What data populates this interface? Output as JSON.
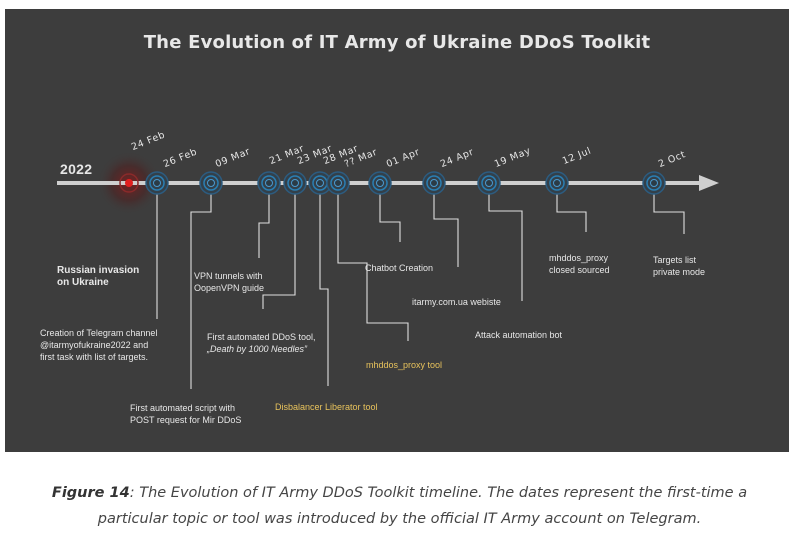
{
  "title": "The Evolution of IT Army of Ukraine DDoS Toolkit",
  "year": "2022",
  "colors": {
    "background": "#3d3d3d",
    "axis": "#cfcfcf",
    "node": "#2a7fb4",
    "highlight": "#e02020",
    "gold_text": "#e8c35c",
    "text": "#e8e8e8"
  },
  "dates": [
    "24 Feb",
    "26 Feb",
    "09 Mar",
    "21 Mar",
    "23 Mar",
    "28 Mar",
    "?? Mar",
    "01 Apr",
    "24 Apr",
    "19 May",
    "12 Jul",
    "2 Oct"
  ],
  "events": {
    "invasion": {
      "line1": "Russian invasion",
      "line2": "on Ukraine"
    },
    "telegram": {
      "line1": "Creation of Telegram channel",
      "line2": "@itarmyofukraine2022 and",
      "line3": "first task with list of targets."
    },
    "script": {
      "line1": "First automated script with",
      "line2": "POST request for Mir DDoS"
    },
    "vpn": {
      "line1": "VPN tunnels with",
      "line2": "OopenVPN guide"
    },
    "ddos_tool": {
      "line1": "First automated DDoS tool,",
      "line2": "„Death by 1000 Needles”"
    },
    "disbalancer": {
      "line1": "Disbalancer Liberator tool"
    },
    "mhddos_proxy_tool": {
      "line1": "mhddos_proxy tool"
    },
    "chatbot": {
      "line1": "Chatbot Creation"
    },
    "website": {
      "line1": "itarmy.com.ua webiste"
    },
    "attack_bot": {
      "line1": "Attack automation bot"
    },
    "closed_source": {
      "line1": "mhddos_proxy",
      "line2": "closed sourced"
    },
    "private_mode": {
      "line1": "Targets list",
      "line2": "private mode"
    }
  },
  "caption": {
    "figure_label": "Figure 14",
    "text": ": The Evolution of IT Army DDoS Toolkit timeline. The dates represent the first-time a particular topic or tool was introduced by the official IT Army account on Telegram."
  }
}
